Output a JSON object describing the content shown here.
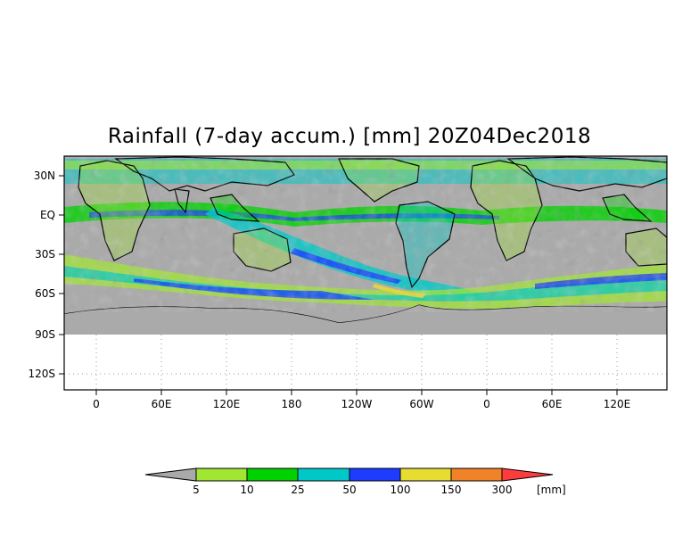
{
  "title": "Rainfall (7-day accum.) [mm] 20Z04Dec2018",
  "map": {
    "lat_labels": [
      "30N",
      "EQ",
      "30S",
      "60S",
      "90S",
      "120S"
    ],
    "lon_labels": [
      "0",
      "60E",
      "120E",
      "180",
      "120W",
      "60W",
      "0",
      "60E",
      "120E"
    ],
    "land_color": "#aaaaaa",
    "ocean_color": "#ffffff"
  },
  "legend": {
    "unit": "[mm]",
    "thresholds": [
      "5",
      "10",
      "25",
      "50",
      "100",
      "150",
      "300"
    ],
    "colors": [
      "#a9a9a9",
      "#a0e632",
      "#00d200",
      "#00c8c8",
      "#1e3cff",
      "#e6dc32",
      "#f08228",
      "#ff3c3c"
    ]
  }
}
